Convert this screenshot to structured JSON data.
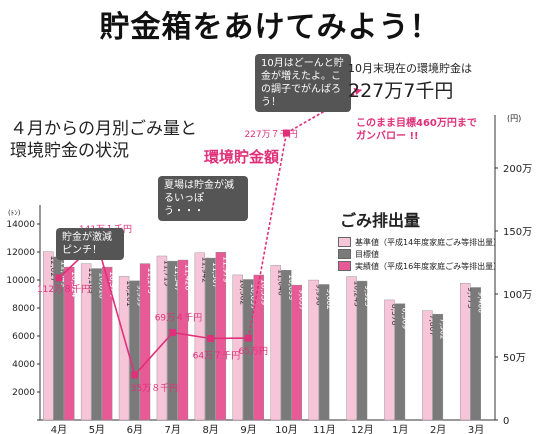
{
  "title": "貯金箱をあけてみよう！",
  "subtitle_line1": "４月からの月別ごみ量と",
  "subtitle_line2": "環境貯金の状況",
  "env_savings_label": "環境貯金額",
  "gomi_title": "ごみ排出量",
  "bubble_top": "10月はどーんと貯金が増えたよ。この調子でがんばろう！",
  "bubble_summer": "夏場は貯金が減るいっぽう・・・",
  "bubble_pinch": "貯金が激減ピンチ！",
  "oct_status_line": "10月末現在の環境貯金は",
  "oct_status_value": "227万7千円",
  "goal_line1": "このまま目標460万円まで",
  "goal_line2": "ガンバロー !!",
  "left_unit": "(ﾄﾝ)",
  "right_unit": "(円)",
  "colors": {
    "standard": "#f7c5d8",
    "target": "#7a7a7a",
    "actual": "#e85a96",
    "line": "#e0307a"
  },
  "chart_data": {
    "type": "bar",
    "categories": [
      "4月",
      "5月",
      "6月",
      "7月",
      "8月",
      "9月",
      "10月",
      "11月",
      "12月",
      "1月",
      "2月",
      "3月"
    ],
    "ylim": [
      0,
      15000
    ],
    "yticks": [
      0,
      2000,
      4000,
      6000,
      8000,
      10000,
      12000,
      14000
    ],
    "series": [
      {
        "name": "基準値（平成14年度家庭ごみ等排出量）",
        "values": [
          12027,
          11169,
          10261,
          11715,
          11942,
          10362,
          11046,
          9996,
          10245,
          8578,
          7807,
          9773
        ]
      },
      {
        "name": "目標値",
        "values": [
          11649,
          10818,
          9939,
          11347,
          11567,
          10037,
          10699,
          9682,
          9923,
          8309,
          7562,
          9466
        ]
      },
      {
        "name": "実績値（平成16年度家庭ごみ等排出量）",
        "values": [
          10924,
          10924,
          11173,
          11428,
          11979,
          10359,
          9637,
          null,
          null,
          null,
          null,
          null
        ]
      }
    ],
    "value_labels": [
      [
        "12,027",
        "11,649",
        "10,924"
      ],
      [
        "11,169",
        "10,818",
        "10,924"
      ],
      [
        "10,261",
        "9,939",
        "11,173"
      ],
      [
        "11,715",
        "11,347",
        "11,428"
      ],
      [
        "11,942",
        "11,567",
        "11,979"
      ],
      [
        "10,362",
        "10,037",
        "10,359"
      ],
      [
        "11,046",
        "10,699",
        "9,637"
      ],
      [
        "9,996",
        "9,682",
        ""
      ],
      [
        "10,245",
        "9,923",
        ""
      ],
      [
        "8,578",
        "8,309",
        ""
      ],
      [
        "7,807",
        "7,562",
        ""
      ],
      [
        "9,773",
        "9,466",
        ""
      ]
    ],
    "savings_line": {
      "unit": "円",
      "ylim": [
        0,
        2500000
      ],
      "yticks": [
        0,
        500000,
        1000000,
        1500000,
        2000000
      ],
      "ytick_labels": [
        "0",
        "50万",
        "100万",
        "150万",
        "200万"
      ],
      "values": [
        1128000,
        1411000,
        358000,
        694000,
        647000,
        650000,
        2277000
      ],
      "labels": [
        "112万８千円",
        "141万１千円",
        "35万８千円",
        "69万４千円",
        "64万７千円",
        "65万円",
        "227万７千円"
      ],
      "projection_to": 2620000
    }
  }
}
